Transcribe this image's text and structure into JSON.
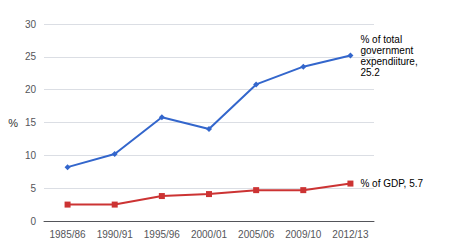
{
  "chart_data": {
    "type": "line",
    "categories": [
      "1985/86",
      "1990/91",
      "1995/96",
      "2000/01",
      "2005/06",
      "2009/10",
      "2012/13"
    ],
    "series": [
      {
        "color": "#3366CC",
        "marker": "diamond",
        "values": [
          8.2,
          10.2,
          15.8,
          14.0,
          20.8,
          23.5,
          25.2
        ]
      },
      {
        "color": "#CC3333",
        "marker": "square",
        "values": [
          2.5,
          2.5,
          3.8,
          4.1,
          4.7,
          4.7,
          5.7
        ]
      }
    ],
    "ylabel": "%",
    "ylim": [
      0,
      30
    ],
    "yticks": [
      0,
      5,
      10,
      15,
      20,
      25,
      30
    ],
    "grid": true,
    "annotations": [
      {
        "text": "% of total\ngovernment\nexpendiiture,\n25.2",
        "x": "2012/13",
        "y": 25.2
      },
      {
        "text": "% of GDP, 5.7",
        "x": "2012/13",
        "y": 5.7
      }
    ]
  }
}
